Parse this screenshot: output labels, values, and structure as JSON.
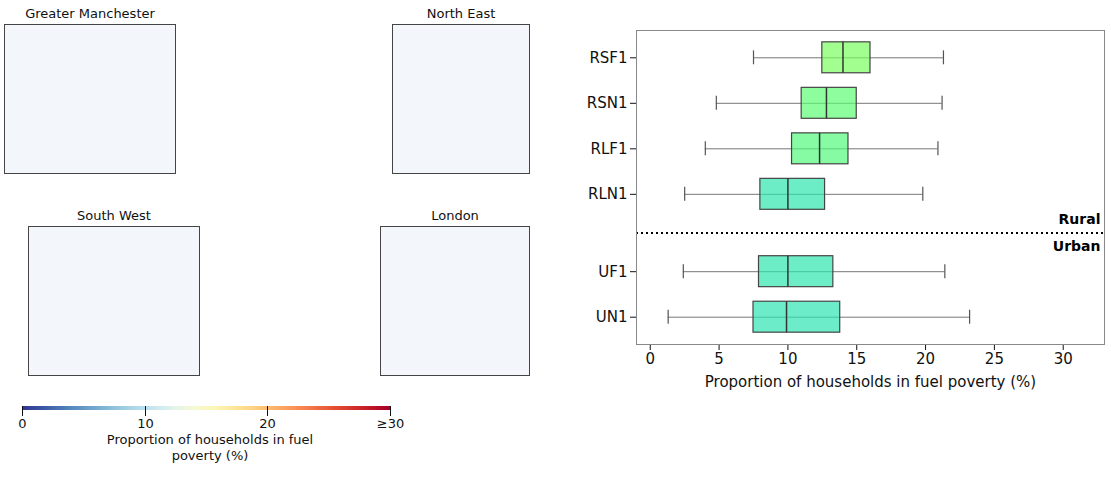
{
  "chart_data": [
    {
      "type": "map",
      "panels": [
        "Greater Manchester",
        "North East",
        "South West",
        "London"
      ],
      "colorbar": {
        "label": "Proportion of households in fuel poverty (%)",
        "range": [
          0,
          30
        ],
        "ticks": [
          0,
          10,
          20,
          {
            "value": 30,
            "label": "≥30"
          }
        ]
      }
    },
    {
      "type": "box",
      "orientation": "horizontal",
      "xlabel": "Proportion of households in fuel poverty (%)",
      "xlim": [
        -1,
        33
      ],
      "xticks": [
        0,
        5,
        10,
        15,
        20,
        25,
        30
      ],
      "categories": [
        "RSF1",
        "RSN1",
        "RLF1",
        "RLN1",
        "UF1",
        "UN1"
      ],
      "groups": [
        {
          "name": "Rural",
          "categories": [
            "RSF1",
            "RSN1",
            "RLF1",
            "RLN1"
          ]
        },
        {
          "name": "Urban",
          "categories": [
            "UF1",
            "UN1"
          ]
        }
      ],
      "whisker_low": [
        7.5,
        4.8,
        4.0,
        2.5,
        2.4,
        1.3
      ],
      "q1": [
        12.5,
        11.0,
        10.3,
        8.0,
        7.9,
        7.5
      ],
      "median": [
        14.0,
        12.8,
        12.3,
        10.0,
        10.0,
        9.9
      ],
      "q3": [
        16.0,
        15.0,
        14.4,
        12.7,
        13.3,
        13.8
      ],
      "whisker_high": [
        21.3,
        21.2,
        20.9,
        19.8,
        21.4,
        23.2
      ]
    }
  ]
}
